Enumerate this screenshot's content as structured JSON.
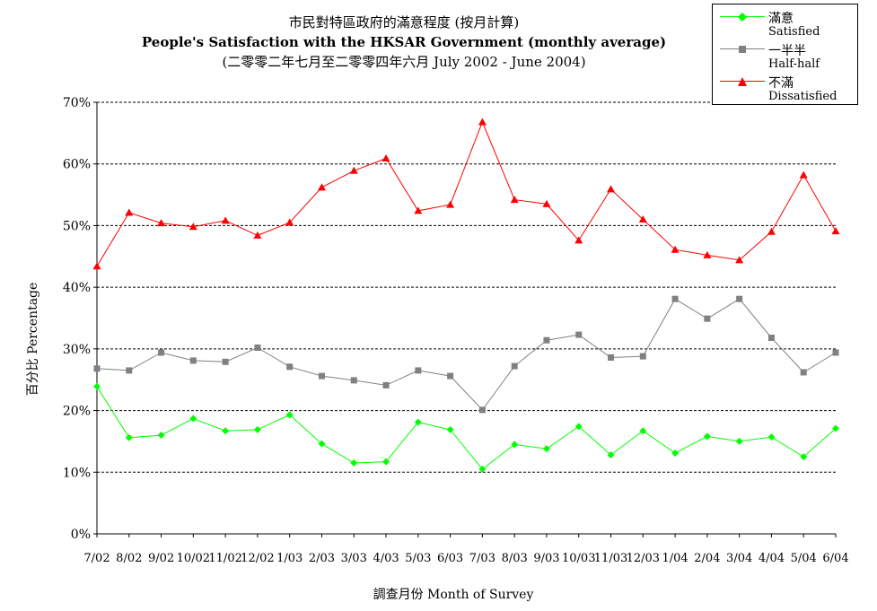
{
  "chart_data": {
    "type": "line",
    "title_cn": "市民對特區政府的滿意程度 (按月計算)",
    "title_en": "People's Satisfaction with the HKSAR Government (monthly average)",
    "subtitle": "(二零零二年七月至二零零四年六月 July 2002 - June 2004)",
    "xlabel": "調查月份 Month of Survey",
    "ylabel": "百分比 Percentage",
    "ylim": [
      0,
      70
    ],
    "y_ticks": [
      "0%",
      "10%",
      "20%",
      "30%",
      "40%",
      "50%",
      "60%",
      "70%"
    ],
    "grid": true,
    "legend_position": "top-right",
    "categories": [
      "7/02",
      "8/02",
      "9/02",
      "10/02",
      "11/02",
      "12/02",
      "1/03",
      "2/03",
      "3/03",
      "4/03",
      "5/03",
      "6/03",
      "7/03",
      "8/03",
      "9/03",
      "10/03",
      "11/03",
      "12/03",
      "1/04",
      "2/04",
      "3/04",
      "4/04",
      "5/04",
      "6/04"
    ],
    "series": [
      {
        "name_cn": "滿意",
        "name_en": "Satisfied",
        "color": "#00ff00",
        "marker": "diamond",
        "values": [
          23.9,
          15.6,
          16.0,
          18.7,
          16.7,
          16.9,
          19.3,
          14.6,
          11.5,
          11.7,
          18.1,
          16.9,
          10.5,
          14.5,
          13.8,
          17.4,
          12.8,
          16.7,
          13.1,
          15.8,
          15.0,
          15.7,
          12.5,
          17.1
        ]
      },
      {
        "name_cn": "一半半",
        "name_en": "Half-half",
        "color": "#808080",
        "marker": "square",
        "values": [
          26.8,
          26.5,
          29.4,
          28.1,
          27.9,
          30.2,
          27.1,
          25.6,
          24.9,
          24.1,
          26.5,
          25.6,
          20.1,
          27.2,
          31.4,
          32.3,
          28.6,
          28.8,
          38.1,
          34.9,
          38.1,
          31.8,
          26.2,
          29.4
        ]
      },
      {
        "name_cn": "不滿",
        "name_en": "Dissatisfied",
        "color": "#ff0000",
        "marker": "triangle",
        "values": [
          43.4,
          52.1,
          50.4,
          49.8,
          50.8,
          48.4,
          50.5,
          56.2,
          58.9,
          60.9,
          52.4,
          53.4,
          66.8,
          54.2,
          53.5,
          47.6,
          55.9,
          51.0,
          46.1,
          45.2,
          44.4,
          49.0,
          58.2,
          49.1
        ]
      }
    ]
  }
}
